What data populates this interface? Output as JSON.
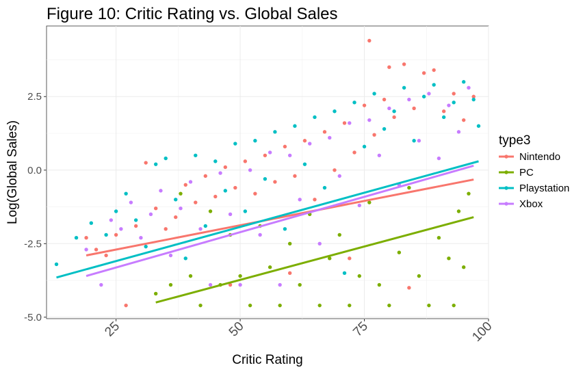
{
  "chart_data": {
    "type": "scatter",
    "title": "Figure 10: Critic Rating vs. Global Sales",
    "xlabel": "Critic Rating",
    "ylabel": "Log(Global Sales)",
    "xlim": [
      11,
      100
    ],
    "ylim": [
      -5.05,
      4.9
    ],
    "x_ticks": [
      25,
      50,
      75,
      100
    ],
    "y_ticks": [
      -5.0,
      -2.5,
      0.0,
      2.5
    ],
    "x_tick_labels": [
      "25",
      "50",
      "75",
      "100"
    ],
    "y_tick_labels": [
      "-5.0",
      "-2.5",
      "0.0",
      "2.5"
    ],
    "grid": true,
    "legend": {
      "title": "type3",
      "position": "right"
    },
    "series": [
      {
        "name": "Nintendo",
        "color": "#F8766D",
        "trend": {
          "x": [
            19,
            97
          ],
          "y": [
            -2.9,
            -0.32
          ]
        },
        "points": [
          [
            19,
            -2.3
          ],
          [
            21,
            -2.7
          ],
          [
            23,
            -2.9
          ],
          [
            25,
            -2.2
          ],
          [
            27,
            -4.6
          ],
          [
            29,
            -1.9
          ],
          [
            31,
            0.25
          ],
          [
            33,
            -1.3
          ],
          [
            35,
            -2.0
          ],
          [
            37,
            -1.6
          ],
          [
            39,
            -0.5
          ],
          [
            41,
            -1.1
          ],
          [
            43,
            -0.2
          ],
          [
            45,
            -0.9
          ],
          [
            47,
            0.1
          ],
          [
            49,
            -0.6
          ],
          [
            51,
            0.3
          ],
          [
            53,
            -0.8
          ],
          [
            55,
            0.5
          ],
          [
            57,
            -0.4
          ],
          [
            59,
            0.8
          ],
          [
            61,
            -0.2
          ],
          [
            63,
            1.0
          ],
          [
            65,
            -1.0
          ],
          [
            67,
            1.3
          ],
          [
            69,
            0.0
          ],
          [
            71,
            1.6
          ],
          [
            73,
            0.6
          ],
          [
            75,
            2.2
          ],
          [
            76,
            4.4
          ],
          [
            77,
            1.2
          ],
          [
            79,
            2.4
          ],
          [
            80,
            3.5
          ],
          [
            81,
            1.8
          ],
          [
            83,
            3.6
          ],
          [
            85,
            2.1
          ],
          [
            87,
            3.3
          ],
          [
            89,
            3.4
          ],
          [
            91,
            2.0
          ],
          [
            93,
            2.6
          ],
          [
            95,
            1.7
          ],
          [
            97,
            2.5
          ],
          [
            48,
            -3.9
          ],
          [
            60,
            -3.5
          ],
          [
            72,
            -3.0
          ],
          [
            84,
            -4.0
          ]
        ]
      },
      {
        "name": "PC",
        "color": "#7CAE00",
        "trend": {
          "x": [
            33,
            97
          ],
          "y": [
            -4.5,
            -1.6
          ]
        },
        "points": [
          [
            33,
            -4.2
          ],
          [
            36,
            -3.9
          ],
          [
            38,
            -0.8
          ],
          [
            40,
            -3.6
          ],
          [
            42,
            -4.6
          ],
          [
            44,
            -1.4
          ],
          [
            46,
            -3.9
          ],
          [
            48,
            -2.2
          ],
          [
            50,
            -3.6
          ],
          [
            52,
            -4.6
          ],
          [
            54,
            -1.9
          ],
          [
            56,
            -3.3
          ],
          [
            58,
            -4.6
          ],
          [
            60,
            -2.5
          ],
          [
            62,
            -3.9
          ],
          [
            64,
            -1.5
          ],
          [
            66,
            -4.6
          ],
          [
            68,
            -3.0
          ],
          [
            70,
            -2.2
          ],
          [
            72,
            -4.6
          ],
          [
            74,
            -3.6
          ],
          [
            76,
            -1.1
          ],
          [
            78,
            -3.9
          ],
          [
            80,
            -4.6
          ],
          [
            82,
            -2.8
          ],
          [
            84,
            -0.6
          ],
          [
            86,
            -3.6
          ],
          [
            88,
            -4.6
          ],
          [
            90,
            -2.3
          ],
          [
            92,
            -3.0
          ],
          [
            93,
            -4.6
          ],
          [
            94,
            -1.4
          ],
          [
            95,
            -3.3
          ],
          [
            96,
            -0.8
          ]
        ]
      },
      {
        "name": "Playstation",
        "color": "#00BFC4",
        "trend": {
          "x": [
            13,
            98
          ],
          "y": [
            -3.65,
            0.3
          ]
        },
        "points": [
          [
            13,
            -3.2
          ],
          [
            17,
            -2.3
          ],
          [
            20,
            -1.8
          ],
          [
            23,
            -2.2
          ],
          [
            25,
            -1.4
          ],
          [
            27,
            -0.8
          ],
          [
            29,
            -1.7
          ],
          [
            31,
            -2.6
          ],
          [
            33,
            0.2
          ],
          [
            35,
            0.4
          ],
          [
            37,
            -1.0
          ],
          [
            39,
            -3.0
          ],
          [
            41,
            0.5
          ],
          [
            43,
            -1.9
          ],
          [
            45,
            0.3
          ],
          [
            47,
            -0.7
          ],
          [
            49,
            0.9
          ],
          [
            51,
            -1.4
          ],
          [
            53,
            1.0
          ],
          [
            55,
            -0.3
          ],
          [
            57,
            1.3
          ],
          [
            59,
            -2.0
          ],
          [
            61,
            1.5
          ],
          [
            63,
            0.2
          ],
          [
            65,
            1.8
          ],
          [
            67,
            -0.6
          ],
          [
            69,
            2.0
          ],
          [
            71,
            -3.5
          ],
          [
            73,
            2.3
          ],
          [
            75,
            0.8
          ],
          [
            77,
            2.6
          ],
          [
            79,
            1.4
          ],
          [
            81,
            2.0
          ],
          [
            83,
            2.8
          ],
          [
            85,
            1.0
          ],
          [
            87,
            2.5
          ],
          [
            89,
            2.9
          ],
          [
            91,
            1.8
          ],
          [
            93,
            2.3
          ],
          [
            95,
            3.0
          ],
          [
            97,
            2.4
          ],
          [
            98,
            1.5
          ]
        ]
      },
      {
        "name": "Xbox",
        "color": "#C77CFF",
        "trend": {
          "x": [
            19,
            97
          ],
          "y": [
            -3.6,
            0.15
          ]
        },
        "points": [
          [
            19,
            -2.7
          ],
          [
            22,
            -3.9
          ],
          [
            24,
            -1.7
          ],
          [
            26,
            -2.0
          ],
          [
            28,
            -1.1
          ],
          [
            30,
            -2.3
          ],
          [
            32,
            -1.5
          ],
          [
            34,
            -0.7
          ],
          [
            36,
            -2.9
          ],
          [
            38,
            -1.3
          ],
          [
            40,
            -0.4
          ],
          [
            42,
            -2.0
          ],
          [
            44,
            -3.9
          ],
          [
            46,
            -0.1
          ],
          [
            48,
            -1.5
          ],
          [
            50,
            -3.9
          ],
          [
            52,
            0.0
          ],
          [
            54,
            -2.2
          ],
          [
            56,
            0.6
          ],
          [
            58,
            -3.9
          ],
          [
            60,
            0.5
          ],
          [
            62,
            -1.0
          ],
          [
            64,
            0.9
          ],
          [
            66,
            -2.5
          ],
          [
            68,
            1.1
          ],
          [
            70,
            -0.2
          ],
          [
            72,
            1.6
          ],
          [
            74,
            -1.2
          ],
          [
            76,
            1.7
          ],
          [
            78,
            0.5
          ],
          [
            80,
            2.1
          ],
          [
            82,
            -0.5
          ],
          [
            84,
            2.4
          ],
          [
            86,
            1.0
          ],
          [
            88,
            2.6
          ],
          [
            90,
            0.4
          ],
          [
            92,
            2.2
          ],
          [
            94,
            1.3
          ],
          [
            96,
            2.8
          ]
        ]
      }
    ]
  }
}
